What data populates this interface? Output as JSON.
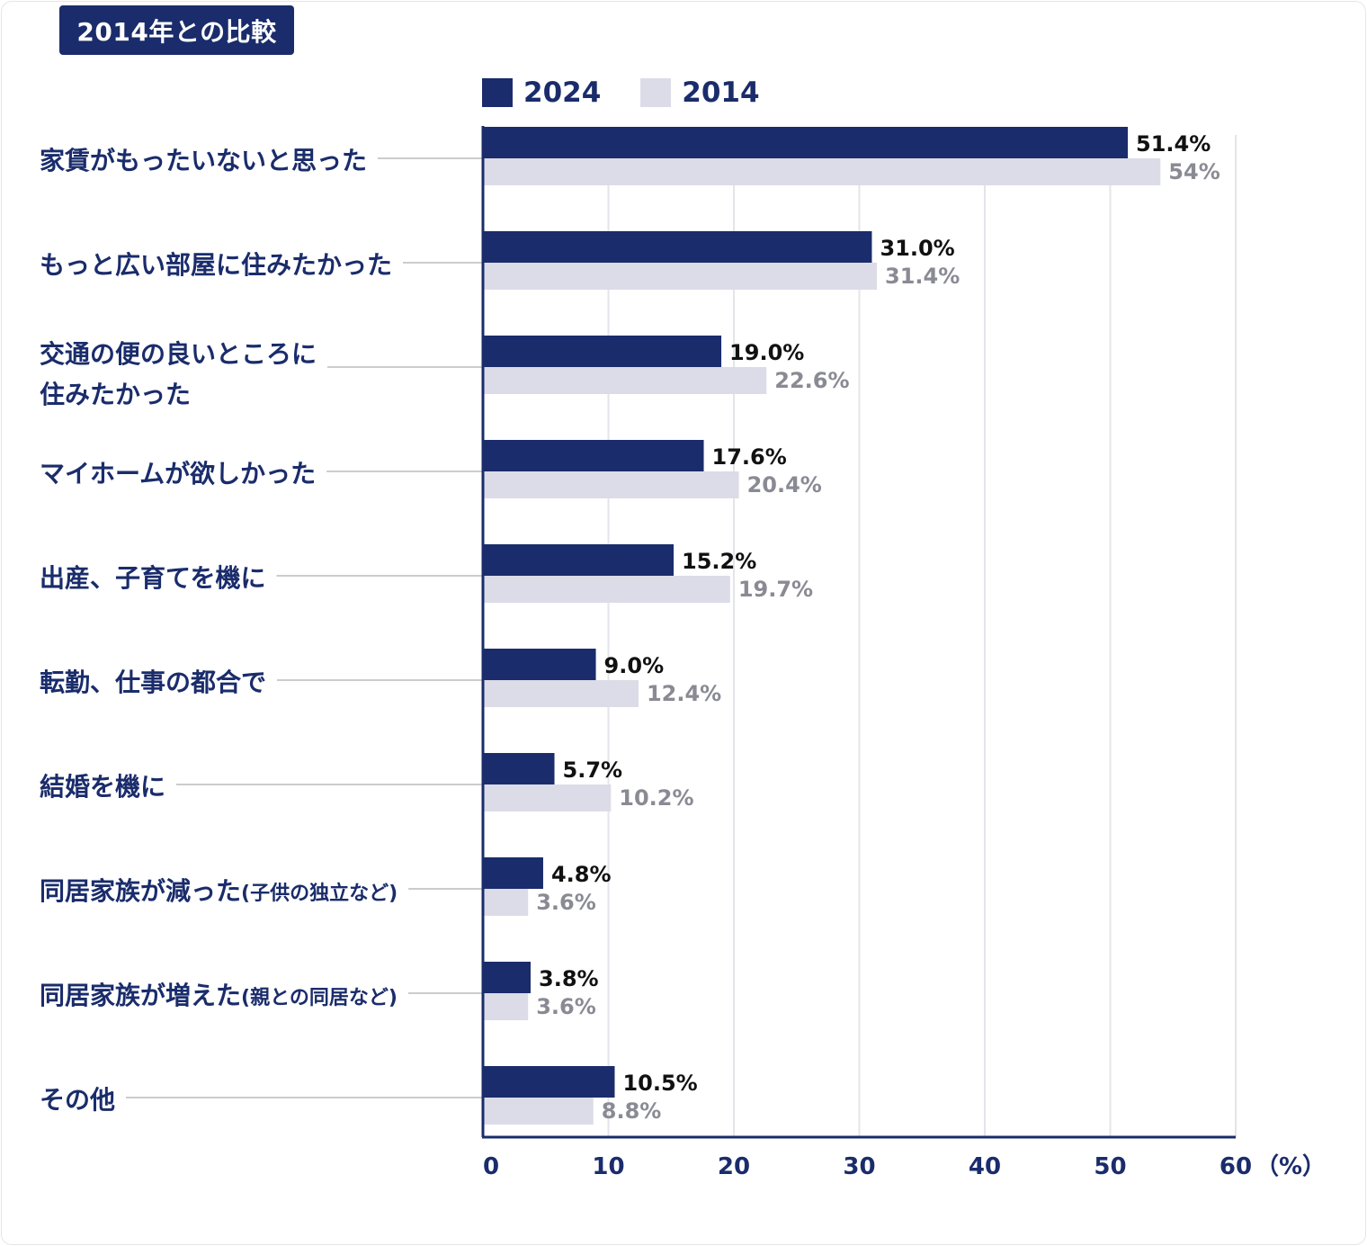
{
  "header": {
    "title": "2014年との比較"
  },
  "colors": {
    "series_2024": "#1a2c6b",
    "series_2014": "#dcdce8",
    "grid": "#e4e4ea",
    "connector": "#cccccc",
    "label": "#1a2c6b"
  },
  "chart_data": {
    "type": "bar",
    "orientation": "horizontal",
    "title": "2014年との比較",
    "unit_label": "（%）",
    "xlim": [
      0,
      60
    ],
    "ticks": [
      "0",
      "10",
      "20",
      "30",
      "40",
      "50",
      "60"
    ],
    "grid": true,
    "legend_position": "top",
    "categories": [
      {
        "main": "家賃がもったいないと思った",
        "sub": ""
      },
      {
        "main": "もっと広い部屋に住みたかった",
        "sub": ""
      },
      {
        "main": "交通の便の良いところに",
        "sub": "住みたかった"
      },
      {
        "main": "マイホームが欲しかった",
        "sub": ""
      },
      {
        "main": "出産、子育てを機に",
        "sub": ""
      },
      {
        "main": "転勤、仕事の都合で",
        "sub": ""
      },
      {
        "main": "結婚を機に",
        "sub": ""
      },
      {
        "main": "同居家族が減った",
        "small": "(子供の独立など)"
      },
      {
        "main": "同居家族が増えた",
        "small": "(親との同居など)"
      },
      {
        "main": "その他",
        "sub": ""
      }
    ],
    "series": [
      {
        "name": "2024",
        "values": [
          51.4,
          31.0,
          19.0,
          17.6,
          15.2,
          9.0,
          5.7,
          4.8,
          3.8,
          10.5
        ],
        "labels": [
          "51.4%",
          "31.0%",
          "19.0%",
          "17.6%",
          "15.2%",
          "9.0%",
          "5.7%",
          "4.8%",
          "3.8%",
          "10.5%"
        ]
      },
      {
        "name": "2014",
        "values": [
          54,
          31.4,
          22.6,
          20.4,
          19.7,
          12.4,
          10.2,
          3.6,
          3.6,
          8.8
        ],
        "labels": [
          "54%",
          "31.4%",
          "22.6%",
          "20.4%",
          "19.7%",
          "12.4%",
          "10.2%",
          "3.6%",
          "3.6%",
          "8.8%"
        ]
      }
    ]
  }
}
